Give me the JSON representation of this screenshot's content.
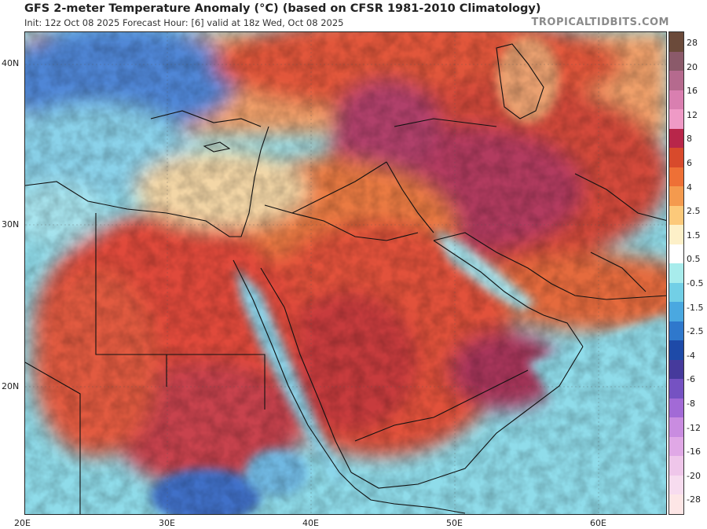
{
  "header": {
    "title": "GFS 2-meter Temperature Anomaly (°C) (based on CFSR 1981-2010 Climatology)",
    "subtitle": "Init: 12z Oct 08 2025   Forecast Hour: [6]   valid at 18z Wed, Oct 08 2025",
    "brand": "TROPICALTIDBITS.COM"
  },
  "map": {
    "lat_labels": [
      "40N",
      "30N",
      "20N"
    ],
    "lon_labels": [
      "20E",
      "30E",
      "40E",
      "50E",
      "60E"
    ]
  },
  "legend": {
    "labels": [
      "28",
      "20",
      "16",
      "12",
      "8",
      "6",
      "4",
      "2.5",
      "1.5",
      "0.5",
      "-0.5",
      "-1.5",
      "-2.5",
      "-4",
      "-6",
      "-8",
      "-12",
      "-16",
      "-20",
      "-28"
    ],
    "colors": [
      "#6b4a3a",
      "#8b5a6a",
      "#b56a8e",
      "#d97fb0",
      "#ef9ac6",
      "#b8264a",
      "#d84a2c",
      "#ee7036",
      "#f49a4e",
      "#fcc97a",
      "#fdf0c8",
      "#ffffff",
      "#a8ecec",
      "#72cfe6",
      "#4aa8e0",
      "#2f78cc",
      "#1e4aa8",
      "#463a9c",
      "#7552c2",
      "#a26ad6",
      "#c98ce0",
      "#e0a8e6",
      "#efc6ea",
      "#f7dcef",
      "#fde6e6"
    ]
  }
}
